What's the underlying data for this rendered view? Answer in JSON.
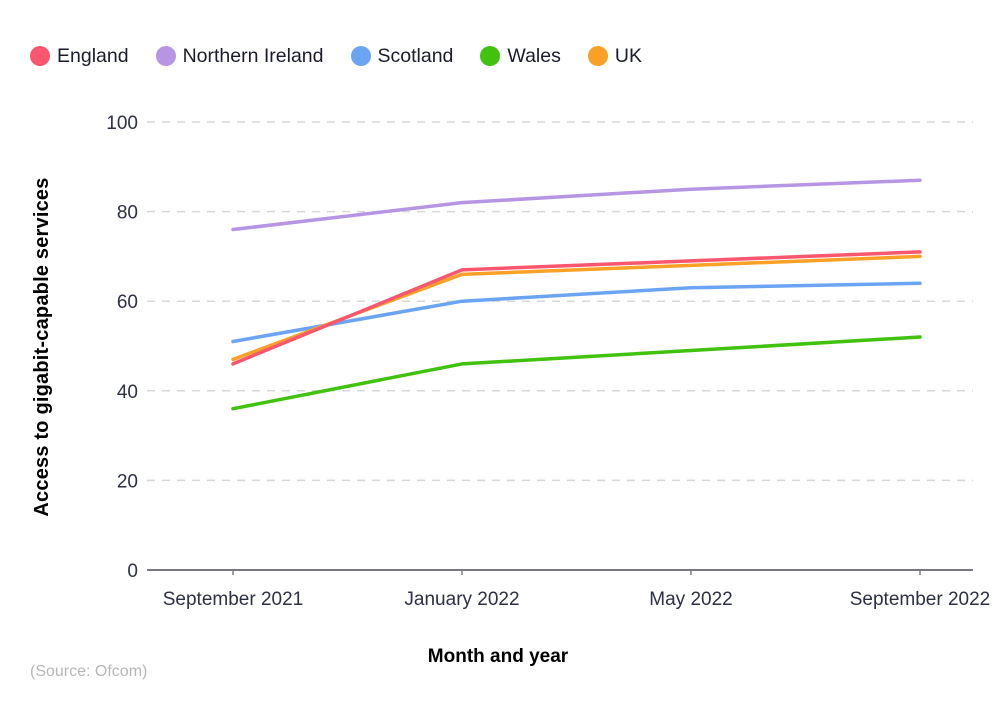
{
  "chart_data": {
    "type": "line",
    "categories": [
      "September 2021",
      "January 2022",
      "May 2022",
      "September 2022"
    ],
    "series": [
      {
        "name": "England",
        "color": "#f9566f",
        "values": [
          46,
          67,
          69,
          71
        ]
      },
      {
        "name": "Northern Ireland",
        "color": "#b795e5",
        "values": [
          76,
          82,
          85,
          87
        ]
      },
      {
        "name": "Scotland",
        "color": "#6ba4f3",
        "values": [
          51,
          60,
          63,
          64
        ]
      },
      {
        "name": "Wales",
        "color": "#40c20e",
        "values": [
          36,
          46,
          49,
          52
        ]
      },
      {
        "name": "UK",
        "color": "#f9a027",
        "values": [
          47,
          66,
          68,
          70
        ]
      }
    ],
    "title": "",
    "xlabel": "Month and year",
    "ylabel": "Access to gigabit-capable services",
    "ylim": [
      0,
      100
    ],
    "yticks": [
      0,
      20,
      40,
      60,
      80,
      100
    ],
    "grid": "dashed horizontal gridlines, solid baseline at 0",
    "legend_position": "top-left"
  },
  "source": "(Source: Ofcom)",
  "colors": {
    "background": "#ffffff",
    "grid": "#d8d8d8",
    "axis_line": "#4a4d55",
    "tick_text": "#2d3044",
    "legend_text": "#1a1c2b",
    "source_text": "#b7b7b7"
  }
}
